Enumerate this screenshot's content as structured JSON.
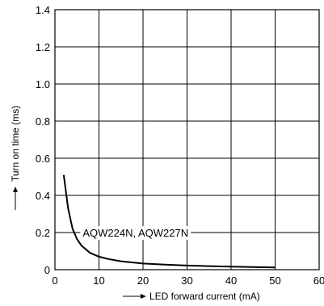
{
  "chart_data": {
    "type": "line",
    "title": "",
    "xlabel": "LED forward current (mA)",
    "ylabel": "Turn on time (ms)",
    "xlim": [
      0,
      60
    ],
    "ylim": [
      0,
      1.4
    ],
    "x_ticks": [
      "0",
      "10",
      "20",
      "30",
      "40",
      "50",
      "60"
    ],
    "y_ticks": [
      "0",
      "0.2",
      "0.4",
      "0.6",
      "0.8",
      "1.0",
      "1.2",
      "1.4"
    ],
    "grid": true,
    "annotation": "AQW224N, AQW227N",
    "series": [
      {
        "x": [
          2,
          3,
          4,
          5,
          6,
          8,
          10,
          12,
          15,
          20,
          25,
          30,
          35,
          40,
          45,
          50
        ],
        "y": [
          0.51,
          0.33,
          0.22,
          0.165,
          0.13,
          0.09,
          0.07,
          0.058,
          0.045,
          0.033,
          0.027,
          0.022,
          0.019,
          0.016,
          0.014,
          0.012
        ]
      }
    ]
  }
}
